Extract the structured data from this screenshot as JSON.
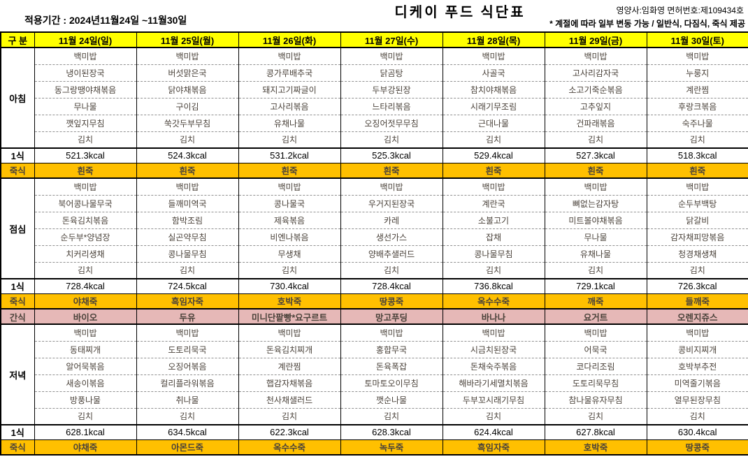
{
  "page": {
    "period": "적용기간 : 2024년11월24일 ~11월30일",
    "title": "디케이 푸드 식단표",
    "nutritionist": "영양사:임화영  면허번호:제109434호",
    "note": "* 계절에 따라 일부 변동 가능 / 일반식, 다짐식, 죽식 제공"
  },
  "colors": {
    "header_bg": "#FFFF00",
    "porridge_bg": "#FFC000",
    "snack_bg": "#E6B8B7",
    "menu_text": "#4A423A",
    "border": "#000000"
  },
  "table": {
    "header": [
      "구 분",
      "11월 24일(일)",
      "11월 25일(월)",
      "11월 26일(화)",
      "11월 27일(수)",
      "11월 28일(목)",
      "11월 29일(금)",
      "11월 30일(토)"
    ],
    "groups": [
      {
        "type": "menu",
        "label": "아침",
        "rows": [
          [
            "백미밥",
            "백미밥",
            "백미밥",
            "백미밥",
            "백미밥",
            "백미밥",
            "백미밥"
          ],
          [
            "냉이된장국",
            "버섯맑은국",
            "콩가루배추국",
            "닭곰탕",
            "사골국",
            "고사리감자국",
            "누룽지"
          ],
          [
            "동그랑땡야채볶음",
            "닭야채볶음",
            "돼지고기짜글이",
            "두부강된장",
            "참치야채볶음",
            "소고기죽순볶음",
            "계란찜"
          ],
          [
            "무나물",
            "구이김",
            "고사리볶음",
            "느타리볶음",
            "시래기무조림",
            "고추잎지",
            "후랑크볶음"
          ],
          [
            "깻잎지무침",
            "쑥갓두부무침",
            "유채나물",
            "오징어젓무무침",
            "근대나물",
            "건파래볶음",
            "숙주나물"
          ],
          [
            "김치",
            "김치",
            "김치",
            "김치",
            "김치",
            "김치",
            "김치"
          ]
        ]
      },
      {
        "type": "kcal",
        "label": "1식",
        "cells": [
          "521.3kcal",
          "524.3kcal",
          "531.2kcal",
          "525.3kcal",
          "529.4kcal",
          "527.3kcal",
          "518.3kcal"
        ]
      },
      {
        "type": "porridge",
        "label": "죽식",
        "cells": [
          "흰죽",
          "흰죽",
          "흰죽",
          "흰죽",
          "흰죽",
          "흰죽",
          "흰죽"
        ]
      },
      {
        "type": "menu",
        "label": "점심",
        "rows": [
          [
            "백미밥",
            "백미밥",
            "백미밥",
            "백미밥",
            "백미밥",
            "백미밥",
            "백미밥"
          ],
          [
            "북어콩나물무국",
            "들깨미역국",
            "콩나물국",
            "우거지된장국",
            "계란국",
            "뼈없는감자탕",
            "순두부백탕"
          ],
          [
            "돈육김치볶음",
            "함박조림",
            "제육볶음",
            "카레",
            "소불고기",
            "미트볼야채볶음",
            "닭갈비"
          ],
          [
            "순두부*양념장",
            "실곤약무침",
            "비엔나볶음",
            "생선가스",
            "잡채",
            "무나물",
            "감자채피망볶음"
          ],
          [
            "치커리생채",
            "콩나물무침",
            "무생채",
            "양배추샐러드",
            "콩나물무침",
            "유채나물",
            "청경채생채"
          ],
          [
            "김치",
            "김치",
            "김치",
            "김치",
            "김치",
            "김치",
            "김치"
          ]
        ]
      },
      {
        "type": "kcal",
        "label": "1식",
        "cells": [
          "728.4kcal",
          "724.5kcal",
          "730.4kcal",
          "728.4kcal",
          "736.8kcal",
          "729.1kcal",
          "726.3kcal"
        ]
      },
      {
        "type": "porridge",
        "label": "죽식",
        "cells": [
          "야채죽",
          "흑임자죽",
          "호박죽",
          "땅콩죽",
          "옥수수죽",
          "깨죽",
          "들깨죽"
        ]
      },
      {
        "type": "snack",
        "label": "간식",
        "cells": [
          "바이오",
          "두유",
          "미니단팥빵*요구르트",
          "망고푸딩",
          "바나나",
          "요거트",
          "오렌지쥬스"
        ]
      },
      {
        "type": "menu",
        "label": "저녁",
        "rows": [
          [
            "백미밥",
            "백미밥",
            "백미밥",
            "백미밥",
            "백미밥",
            "백미밥",
            "백미밥"
          ],
          [
            "동태찌개",
            "도토리묵국",
            "돈육김치찌개",
            "홍합무국",
            "시금치된장국",
            "어묵국",
            "콩비지찌개"
          ],
          [
            "알어묵볶음",
            "오징어볶음",
            "계란찜",
            "돈육폭잡",
            "돈채숙주볶음",
            "코다리조림",
            "호박부추전"
          ],
          [
            "새송이볶음",
            "컬리플라워볶음",
            "햅감자채볶음",
            "토마토오이무침",
            "해바라기세멸치볶음",
            "도토리묵무침",
            "미역줄기볶음"
          ],
          [
            "방풍나물",
            "취나물",
            "천사채샐러드",
            "깻순나물",
            "두부꼬시래기무침",
            "참나물유자무침",
            "열무된장무침"
          ],
          [
            "김치",
            "김치",
            "김치",
            "김치",
            "김치",
            "김치",
            "김치"
          ]
        ]
      },
      {
        "type": "kcal",
        "label": "1식",
        "cells": [
          "628.1kcal",
          "634.5kcal",
          "622.3kcal",
          "628.3kcal",
          "624.4kcal",
          "627.8kcal",
          "630.4kcal"
        ]
      },
      {
        "type": "porridge",
        "label": "죽식",
        "cells": [
          "야채죽",
          "아몬드죽",
          "옥수수죽",
          "녹두죽",
          "흑임자죽",
          "호박죽",
          "땅콩죽"
        ]
      }
    ]
  }
}
